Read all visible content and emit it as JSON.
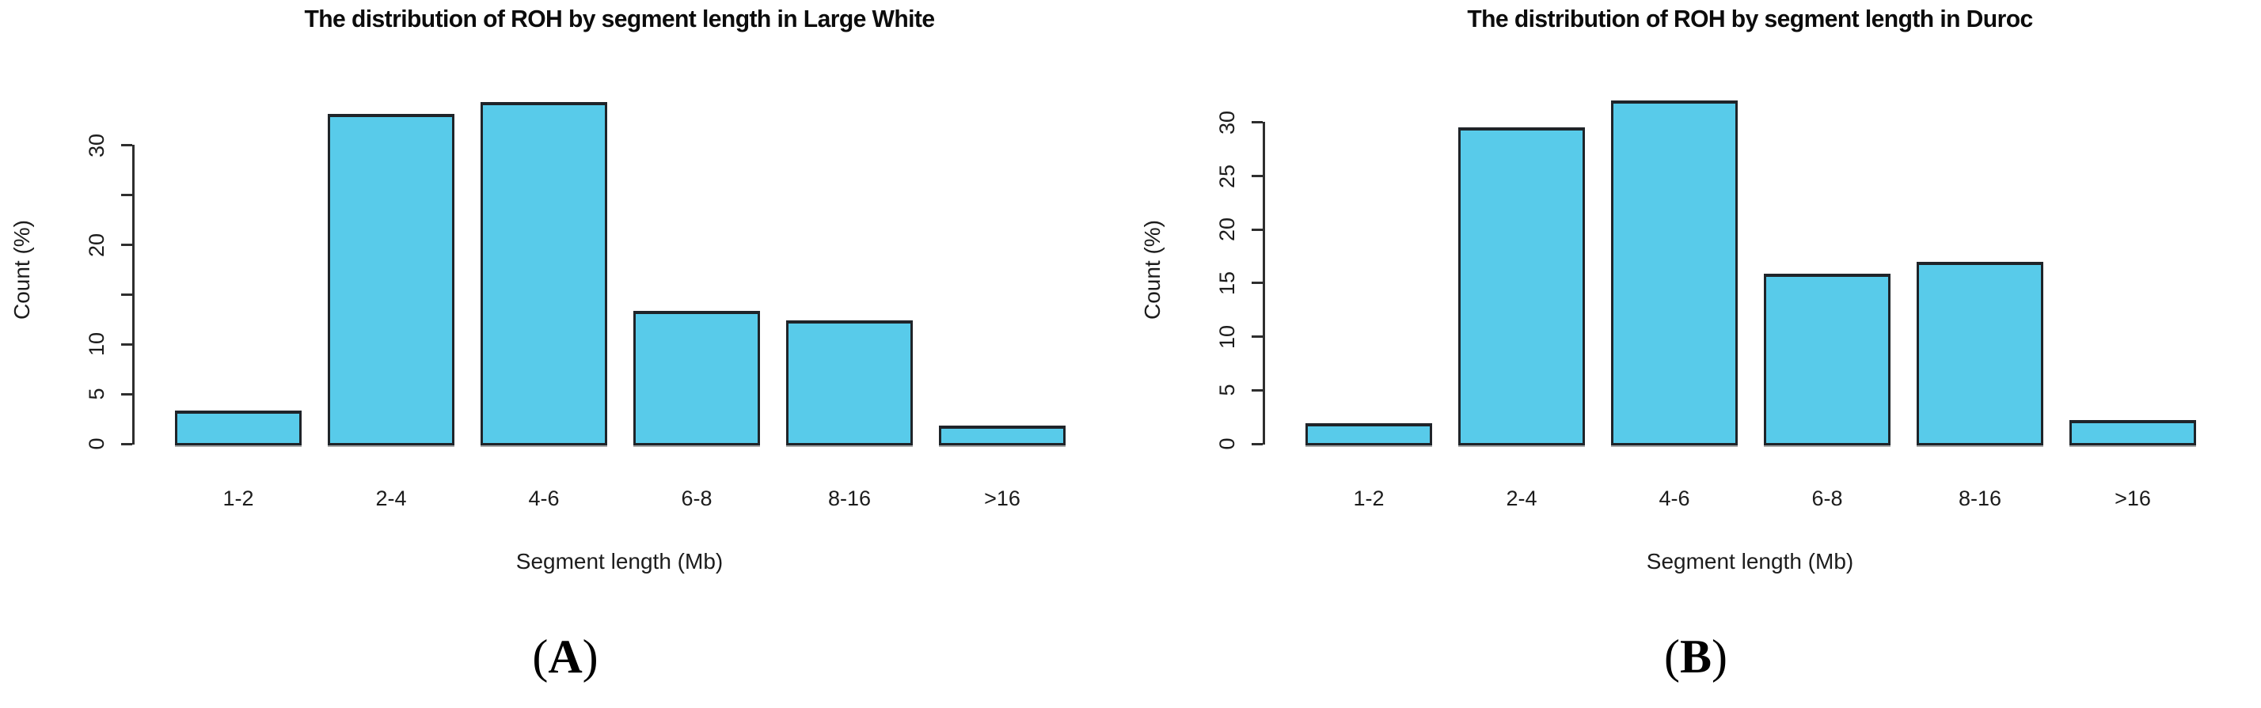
{
  "figure": {
    "background_color": "#ffffff",
    "axis_color": "#2e2e2e",
    "text_color": "#1c1c1c"
  },
  "captions": [
    {
      "open": "(",
      "label": "A",
      "close": ")"
    },
    {
      "open": "(",
      "label": "B",
      "close": ")"
    }
  ],
  "chart_data": [
    {
      "type": "bar",
      "title": "The distribution of ROH by segment length in Large White",
      "xlabel": "Segment length (Mb)",
      "ylabel": "Count (%)",
      "categories": [
        "1-2",
        "2-4",
        "4-6",
        "6-8",
        "8-16",
        ">16"
      ],
      "values": [
        3.5,
        33.3,
        34.5,
        13.5,
        12.6,
        2.0
      ],
      "ylim": [
        0,
        35
      ],
      "yticks": [
        {
          "v": 0,
          "label": "0"
        },
        {
          "v": 5,
          "label": "5"
        },
        {
          "v": 10,
          "label": "10"
        },
        {
          "v": 15,
          "label": ""
        },
        {
          "v": 20,
          "label": "20"
        },
        {
          "v": 25,
          "label": ""
        },
        {
          "v": 30,
          "label": "30"
        }
      ],
      "bar_color": "#58CBEA",
      "bar_border_color": "#1f2429",
      "grid": false,
      "legend": null
    },
    {
      "type": "bar",
      "title": "The distribution of ROH by segment length in Duroc",
      "xlabel": "Segment length (Mb)",
      "ylabel": "Count (%)",
      "categories": [
        "1-2",
        "2-4",
        "4-6",
        "6-8",
        "8-16",
        ">16"
      ],
      "values": [
        2.1,
        29.7,
        32.2,
        16.0,
        17.1,
        2.4
      ],
      "ylim": [
        0,
        32.5
      ],
      "yticks": [
        {
          "v": 0,
          "label": "0"
        },
        {
          "v": 5,
          "label": "5"
        },
        {
          "v": 10,
          "label": "10"
        },
        {
          "v": 15,
          "label": "15"
        },
        {
          "v": 20,
          "label": "20"
        },
        {
          "v": 25,
          "label": "25"
        },
        {
          "v": 30,
          "label": "30"
        }
      ],
      "bar_color": "#58CBEA",
      "bar_border_color": "#1f2429",
      "grid": false,
      "legend": null
    }
  ]
}
